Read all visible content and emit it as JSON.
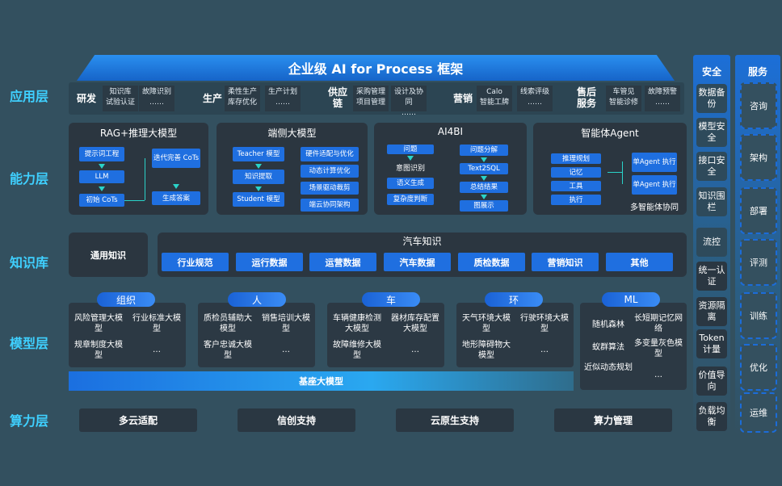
{
  "title": "企业级 AI for Process 框架",
  "layers": {
    "app": "应用层",
    "cap": "能力层",
    "kb": "知识库",
    "model": "模型层",
    "compute": "算力层"
  },
  "app": [
    {
      "name": "研发",
      "boxes": [
        [
          "知识库",
          "试验认证"
        ],
        [
          "故障识别",
          "……"
        ]
      ]
    },
    {
      "name": "生产",
      "boxes": [
        [
          "柔性生产",
          "库存优化"
        ],
        [
          "生产计划",
          "……"
        ]
      ]
    },
    {
      "name": "供应链",
      "boxes": [
        [
          "采购管理",
          "项目管理"
        ],
        [
          "设计及协同",
          "……"
        ]
      ]
    },
    {
      "name": "营销",
      "boxes": [
        [
          "Calo",
          "智能工牌"
        ],
        [
          "线索评级",
          "……"
        ]
      ]
    },
    {
      "name": "售后服务",
      "boxes": [
        [
          "车管见",
          "智能诊修"
        ],
        [
          "故障预警",
          "……"
        ]
      ]
    }
  ],
  "cap": {
    "rag": {
      "title": "RAG+推理大模型",
      "a": "提示词工程",
      "b": "LLM",
      "c": "初始 CoTs",
      "d": "迭代完善 CoTs",
      "e": "生成答案"
    },
    "edge": {
      "title": "端侧大模型",
      "a": "Teacher 模型",
      "b": "知识提取",
      "c": "Student 模型",
      "r": [
        "硬件适配与优化",
        "动态计算优化",
        "场景驱动裁剪",
        "端云协同架构"
      ]
    },
    "bi": {
      "title": "AI4BI",
      "a": "问题",
      "b": "意图识别",
      "c": "语义生成",
      "d": "复杂度判断",
      "e": "问题分解",
      "f": "Text2SQL",
      "g": "总结结果",
      "h": "图展示"
    },
    "agent": {
      "title": "智能体Agent",
      "items": [
        "推理规划",
        "记忆",
        "工具",
        "执行"
      ],
      "x1": "单Agent 执行",
      "x2": "单Agent 执行",
      "foot": "多智能体协同"
    }
  },
  "kb": {
    "general": "通用知识",
    "title": "汽车知识",
    "items": [
      "行业规范",
      "运行数据",
      "运营数据",
      "汽车数据",
      "质检数据",
      "营销知识",
      "其他"
    ]
  },
  "model": {
    "groups": [
      {
        "name": "组织",
        "items": [
          "风险管理大模型",
          "行业标准大模型",
          "规章制度大模型",
          "…"
        ]
      },
      {
        "name": "人",
        "items": [
          "质检员辅助大模型",
          "销售培训大模型",
          "客户忠诚大模型",
          "…"
        ]
      },
      {
        "name": "车",
        "items": [
          "车辆健康检测大模型",
          "器材库存配置大模型",
          "故障维修大模型",
          "…"
        ]
      },
      {
        "name": "环",
        "items": [
          "天气环境大模型",
          "行驶环境大模型",
          "地形障碍物大模型",
          "…"
        ]
      }
    ],
    "ml": {
      "name": "ML",
      "items": [
        "随机森林",
        "长短期记忆网络",
        "蚁群算法",
        "多变量灰色模型",
        "近似动态规划",
        "…"
      ]
    },
    "base": "基座大模型"
  },
  "compute": [
    "多云适配",
    "信创支持",
    "云原生支持",
    "算力管理"
  ],
  "security": {
    "title": "安全",
    "items": [
      "数据备份",
      "模型安全",
      "接口安全",
      "知识围栏",
      "流控",
      "统一认证",
      "资源隔离",
      "Token计量",
      "价值导向",
      "负载均衡"
    ]
  },
  "service": {
    "title": "服务",
    "items": [
      "咨询",
      "架构",
      "部署",
      "评测",
      "训练",
      "优化",
      "运维"
    ]
  },
  "colors": {
    "accent": "#3fd0ff",
    "box": "#1f6fe0",
    "background": "#33505f"
  }
}
